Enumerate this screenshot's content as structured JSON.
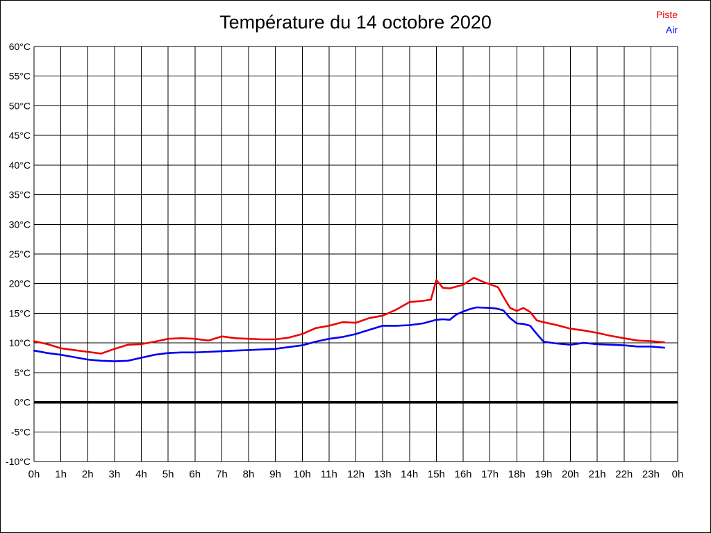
{
  "title": "Température du 14 octobre 2020",
  "legend": {
    "items": [
      {
        "label": "Piste",
        "color": "#ee0000"
      },
      {
        "label": "Air",
        "color": "#0000ee"
      }
    ]
  },
  "colors": {
    "grid": "#000000",
    "background": "#ffffff",
    "zero_line": "#000000",
    "axis_text": "#000000"
  },
  "chart_data": {
    "type": "line",
    "title": "Température du 14 octobre 2020",
    "xlabel": "",
    "ylabel": "",
    "xlim": [
      0,
      24
    ],
    "ylim": [
      -10,
      60
    ],
    "grid": true,
    "legend_position": "top-right",
    "x_tick_labels": [
      "0h",
      "1h",
      "2h",
      "3h",
      "4h",
      "5h",
      "6h",
      "7h",
      "8h",
      "9h",
      "10h",
      "11h",
      "12h",
      "13h",
      "14h",
      "15h",
      "16h",
      "17h",
      "18h",
      "19h",
      "20h",
      "21h",
      "22h",
      "23h",
      "0h"
    ],
    "y_tick_labels": [
      "-10°C",
      "-5°C",
      "0°C",
      "5°C",
      "10°C",
      "15°C",
      "20°C",
      "25°C",
      "30°C",
      "35°C",
      "40°C",
      "45°C",
      "50°C",
      "55°C",
      "60°C"
    ],
    "series": [
      {
        "name": "Piste",
        "color": "#ee0000",
        "points": [
          [
            0,
            10.3
          ],
          [
            0.5,
            9.8
          ],
          [
            1,
            9.1
          ],
          [
            1.5,
            8.8
          ],
          [
            2,
            8.5
          ],
          [
            2.5,
            8.2
          ],
          [
            3,
            9.0
          ],
          [
            3.5,
            9.7
          ],
          [
            4,
            9.8
          ],
          [
            4.5,
            10.2
          ],
          [
            5,
            10.7
          ],
          [
            5.5,
            10.8
          ],
          [
            6,
            10.7
          ],
          [
            6.5,
            10.4
          ],
          [
            7,
            11.1
          ],
          [
            7.5,
            10.8
          ],
          [
            8,
            10.7
          ],
          [
            8.5,
            10.6
          ],
          [
            9,
            10.6
          ],
          [
            9.5,
            10.9
          ],
          [
            10,
            11.5
          ],
          [
            10.5,
            12.5
          ],
          [
            11,
            12.9
          ],
          [
            11.5,
            13.5
          ],
          [
            12,
            13.4
          ],
          [
            12.5,
            14.2
          ],
          [
            13,
            14.6
          ],
          [
            13.5,
            15.6
          ],
          [
            14,
            16.9
          ],
          [
            14.5,
            17.1
          ],
          [
            14.8,
            17.3
          ],
          [
            15,
            20.6
          ],
          [
            15.25,
            19.3
          ],
          [
            15.5,
            19.2
          ],
          [
            16,
            19.8
          ],
          [
            16.4,
            21.0
          ],
          [
            16.75,
            20.3
          ],
          [
            17,
            19.9
          ],
          [
            17.3,
            19.4
          ],
          [
            17.5,
            17.8
          ],
          [
            17.75,
            15.9
          ],
          [
            18,
            15.4
          ],
          [
            18.25,
            15.9
          ],
          [
            18.5,
            15.2
          ],
          [
            18.75,
            13.8
          ],
          [
            19,
            13.5
          ],
          [
            19.5,
            13.0
          ],
          [
            20,
            12.4
          ],
          [
            20.5,
            12.1
          ],
          [
            21,
            11.7
          ],
          [
            21.5,
            11.2
          ],
          [
            22,
            10.8
          ],
          [
            22.5,
            10.4
          ],
          [
            23,
            10.3
          ],
          [
            23.5,
            10.1
          ]
        ]
      },
      {
        "name": "Air",
        "color": "#0000ee",
        "points": [
          [
            0,
            8.7
          ],
          [
            0.5,
            8.3
          ],
          [
            1,
            8.0
          ],
          [
            1.5,
            7.6
          ],
          [
            2,
            7.2
          ],
          [
            2.5,
            7.0
          ],
          [
            3,
            6.9
          ],
          [
            3.5,
            7.0
          ],
          [
            4,
            7.5
          ],
          [
            4.5,
            8.0
          ],
          [
            5,
            8.3
          ],
          [
            5.5,
            8.4
          ],
          [
            6,
            8.4
          ],
          [
            6.5,
            8.5
          ],
          [
            7,
            8.6
          ],
          [
            7.5,
            8.7
          ],
          [
            8,
            8.8
          ],
          [
            8.5,
            8.9
          ],
          [
            9,
            9.0
          ],
          [
            9.5,
            9.3
          ],
          [
            10,
            9.6
          ],
          [
            10.5,
            10.2
          ],
          [
            11,
            10.7
          ],
          [
            11.5,
            11.0
          ],
          [
            12,
            11.5
          ],
          [
            12.5,
            12.2
          ],
          [
            13,
            12.9
          ],
          [
            13.5,
            12.9
          ],
          [
            14,
            13.0
          ],
          [
            14.5,
            13.3
          ],
          [
            15,
            13.9
          ],
          [
            15.25,
            14.0
          ],
          [
            15.5,
            13.9
          ],
          [
            15.75,
            14.8
          ],
          [
            16,
            15.3
          ],
          [
            16.25,
            15.7
          ],
          [
            16.5,
            16.0
          ],
          [
            17,
            15.9
          ],
          [
            17.25,
            15.8
          ],
          [
            17.5,
            15.5
          ],
          [
            17.75,
            14.2
          ],
          [
            18,
            13.3
          ],
          [
            18.25,
            13.2
          ],
          [
            18.5,
            12.9
          ],
          [
            18.75,
            11.5
          ],
          [
            19,
            10.2
          ],
          [
            19.5,
            9.9
          ],
          [
            20,
            9.7
          ],
          [
            20.5,
            10.0
          ],
          [
            21,
            9.8
          ],
          [
            21.5,
            9.7
          ],
          [
            22,
            9.6
          ],
          [
            22.5,
            9.4
          ],
          [
            23,
            9.4
          ],
          [
            23.5,
            9.2
          ]
        ]
      }
    ]
  }
}
